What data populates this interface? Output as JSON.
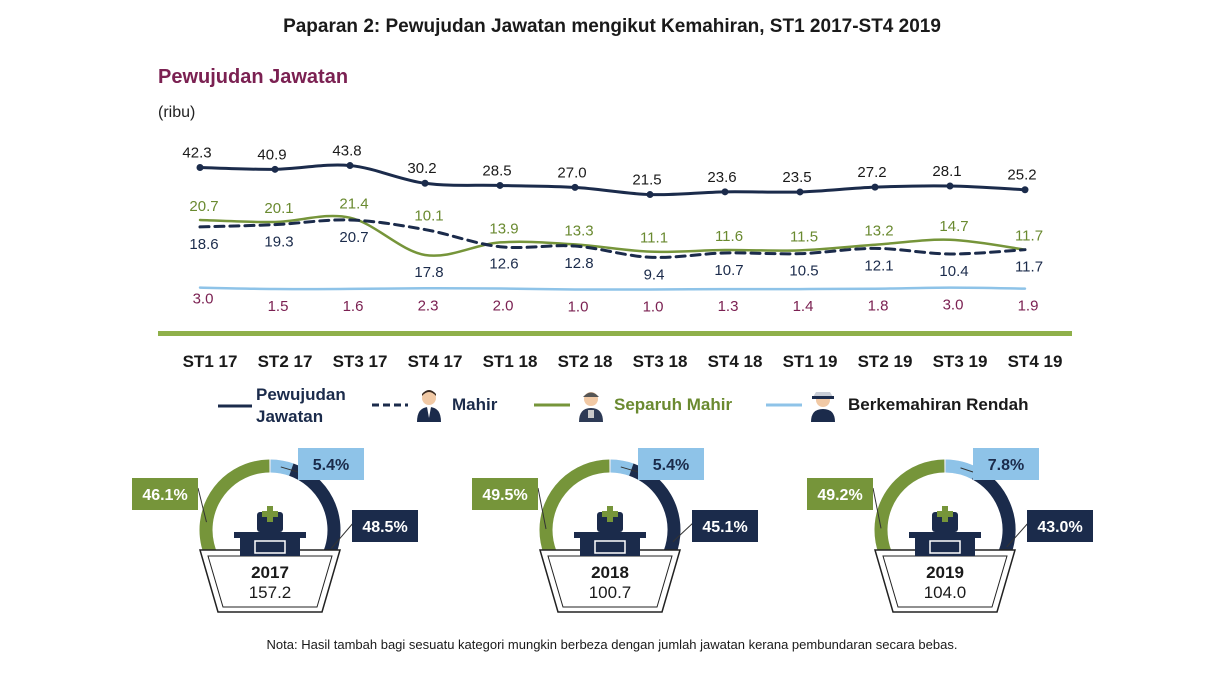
{
  "page": {
    "title": "Paparan 2: Pewujudan Jawatan mengikut Kemahiran, ST1 2017-ST4 2019",
    "note": "Nota: Hasil tambah bagi sesuatu kategori mungkin berbeza dengan jumlah jawatan kerana pembundaran secara bebas."
  },
  "colors": {
    "total": "#1b2b4b",
    "mahir": "#1b2b4b",
    "separuh": "#76953a",
    "rendah": "#8ec3e8",
    "divider": "#8fb04a",
    "label_total": "#1a1a1a",
    "label_mahir": "#1b2b4b",
    "label_separuh": "#6a8a30",
    "label_rendah": "#7b2152"
  },
  "icons": {
    "mahir": "businessman-icon",
    "separuh": "worker-icon",
    "rendah": "cleaner-icon",
    "donut_center": "office-desk-icon"
  },
  "chart_data": [
    {
      "type": "line",
      "title": "Pewujudan Jawatan",
      "ylabel": "(ribu)",
      "xlabel": "",
      "categories": [
        "ST1 17",
        "ST2 17",
        "ST3 17",
        "ST4 17",
        "ST1 18",
        "ST2 18",
        "ST3 18",
        "ST4 18",
        "ST1 19",
        "ST2 19",
        "ST3 19",
        "ST4 19"
      ],
      "series": [
        {
          "key": "total",
          "name": "Pewujudan Jawatan",
          "values": [
            42.3,
            40.9,
            43.8,
            30.2,
            28.5,
            27.0,
            21.5,
            23.6,
            23.5,
            27.2,
            28.1,
            25.2
          ]
        },
        {
          "key": "mahir",
          "name": "Mahir",
          "values": [
            18.6,
            19.3,
            20.7,
            17.8,
            12.6,
            12.8,
            9.4,
            10.7,
            10.5,
            12.1,
            10.4,
            11.7
          ]
        },
        {
          "key": "separuh",
          "name": "Separuh Mahir",
          "values": [
            20.7,
            20.1,
            21.4,
            10.1,
            13.9,
            13.3,
            11.1,
            11.6,
            11.5,
            13.2,
            14.7,
            11.7
          ]
        },
        {
          "key": "rendah",
          "name": "Berkemahiran Rendah",
          "values": [
            3.0,
            1.5,
            1.6,
            2.3,
            2.0,
            1.0,
            1.0,
            1.3,
            1.4,
            1.8,
            3.0,
            1.9
          ]
        }
      ],
      "legend_position": "bottom",
      "grid": false
    },
    {
      "type": "pie",
      "title": "2017",
      "total": "157.2",
      "slices": [
        {
          "key": "mahir",
          "name": "Mahir",
          "value": 48.5,
          "label": "48.5%"
        },
        {
          "key": "separuh",
          "name": "Separuh Mahir",
          "value": 46.1,
          "label": "46.1%"
        },
        {
          "key": "rendah",
          "name": "Berkemahiran Rendah",
          "value": 5.4,
          "label": "5.4%"
        }
      ]
    },
    {
      "type": "pie",
      "title": "2018",
      "total": "100.7",
      "slices": [
        {
          "key": "mahir",
          "name": "Mahir",
          "value": 45.1,
          "label": "45.1%"
        },
        {
          "key": "separuh",
          "name": "Separuh Mahir",
          "value": 49.5,
          "label": "49.5%"
        },
        {
          "key": "rendah",
          "name": "Berkemahiran Rendah",
          "value": 5.4,
          "label": "5.4%"
        }
      ]
    },
    {
      "type": "pie",
      "title": "2019",
      "total": "104.0",
      "slices": [
        {
          "key": "mahir",
          "name": "Mahir",
          "value": 43.0,
          "label": "43.0%"
        },
        {
          "key": "separuh",
          "name": "Separuh Mahir",
          "value": 49.2,
          "label": "49.2%"
        },
        {
          "key": "rendah",
          "name": "Berkemahiran Rendah",
          "value": 7.8,
          "label": "7.8%"
        }
      ]
    }
  ],
  "legend": {
    "total_line1": "Pewujudan",
    "total_line2": "Jawatan",
    "mahir": "Mahir",
    "separuh": "Separuh Mahir",
    "rendah": "Berkemahiran Rendah"
  }
}
